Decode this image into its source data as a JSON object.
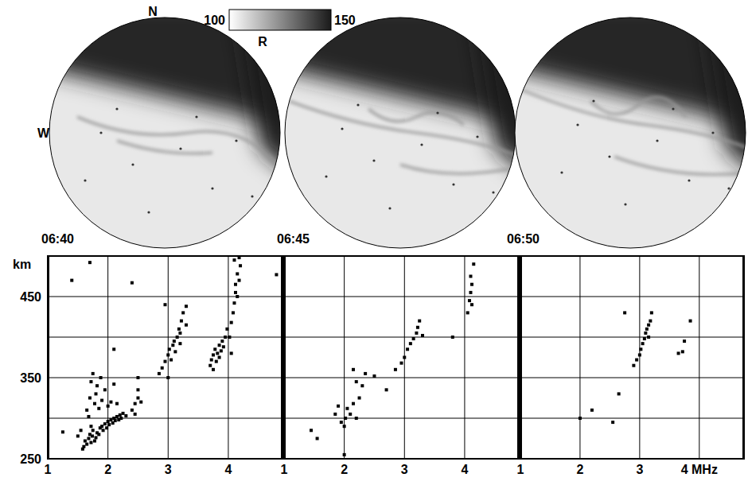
{
  "sky_images": {
    "colorbar": {
      "range": [
        100,
        150
      ],
      "label": "R"
    },
    "north": "N",
    "west": "W",
    "times": [
      "06:40",
      "06:45",
      "06:50"
    ]
  },
  "chart_data": [
    {
      "type": "scatter",
      "y_label": "km",
      "xlim": [
        1,
        4.9
      ],
      "ylim": [
        250,
        500
      ],
      "xticks": [
        1,
        2,
        3,
        4
      ],
      "yticks": [
        250,
        {
          "value": 300,
          "label": null
        },
        350,
        {
          "value": 400,
          "label": null
        },
        450,
        {
          "value": 500,
          "label": null
        }
      ],
      "grid": true,
      "color": "#000000",
      "marker": "square",
      "x": [
        1.4,
        1.25,
        1.7,
        2.4,
        2.1,
        2.95,
        4.8,
        2.5,
        1.6,
        1.62,
        1.65,
        1.68,
        1.7,
        1.72,
        1.74,
        1.75,
        1.78,
        1.8,
        1.82,
        1.85,
        1.87,
        1.9,
        1.92,
        1.95,
        1.98,
        2.0,
        2.02,
        2.05,
        2.08,
        2.1,
        2.12,
        2.15,
        2.18,
        2.2,
        2.22,
        2.25,
        2.3,
        1.5,
        1.55,
        1.58,
        1.72,
        1.65,
        1.7,
        1.72,
        1.75,
        1.78,
        1.8,
        1.82,
        1.85,
        1.9,
        1.95,
        2.0,
        2.05,
        2.1,
        2.15,
        1.68,
        1.88,
        2.4,
        2.45,
        2.5,
        2.55,
        2.5,
        2.45,
        2.85,
        2.9,
        2.95,
        3.0,
        3.02,
        3.05,
        3.08,
        3.1,
        3.12,
        3.15,
        3.18,
        3.2,
        3.22,
        3.25,
        3.3,
        3.3,
        3.2,
        3.0,
        3.7,
        3.72,
        3.75,
        3.78,
        3.8,
        3.82,
        3.85,
        3.88,
        3.9,
        3.92,
        3.95,
        3.98,
        3.75,
        3.85,
        4.02,
        4.05,
        4.08,
        4.1,
        4.12,
        4.12,
        4.15,
        4.15,
        4.18,
        4.2,
        4.1,
        4.18,
        4.05
      ],
      "values": [
        470,
        283,
        492,
        467,
        385,
        440,
        477,
        350,
        265,
        272,
        268,
        275,
        280,
        270,
        278,
        285,
        272,
        276,
        282,
        280,
        288,
        290,
        285,
        293,
        288,
        296,
        292,
        298,
        294,
        300,
        297,
        302,
        298,
        304,
        300,
        306,
        303,
        278,
        285,
        262,
        290,
        310,
        325,
        345,
        355,
        318,
        330,
        340,
        312,
        322,
        335,
        315,
        320,
        342,
        318,
        302,
        350,
        310,
        318,
        325,
        320,
        335,
        305,
        355,
        362,
        370,
        378,
        385,
        372,
        390,
        395,
        382,
        400,
        410,
        405,
        420,
        430,
        438,
        415,
        392,
        350,
        365,
        372,
        378,
        385,
        370,
        380,
        390,
        383,
        395,
        388,
        400,
        410,
        360,
        375,
        400,
        418,
        430,
        442,
        455,
        465,
        450,
        478,
        470,
        488,
        495,
        498,
        380
      ]
    },
    {
      "type": "scatter",
      "xlim": [
        1,
        4.9
      ],
      "ylim": [
        250,
        500
      ],
      "xticks": [
        1,
        2,
        3,
        4
      ],
      "yticks": [
        250,
        {
          "value": 300,
          "label": null
        },
        350,
        {
          "value": 400,
          "label": null
        },
        450,
        {
          "value": 500,
          "label": null
        }
      ],
      "grid": true,
      "tick_labels": "x",
      "color": "#000000",
      "marker": "square",
      "x": [
        1.45,
        1.55,
        1.85,
        1.9,
        1.95,
        2.0,
        2.02,
        2.05,
        2.1,
        2.15,
        2.2,
        2.25,
        2.2,
        2.15,
        2.3,
        2.35,
        2.5,
        2.7,
        2.85,
        2.95,
        3.0,
        3.05,
        3.1,
        3.15,
        3.2,
        3.22,
        3.25,
        3.3,
        3.8,
        4.05,
        4.08,
        4.1,
        4.12,
        4.1,
        4.15,
        4.12,
        2.0
      ],
      "values": [
        285,
        275,
        305,
        315,
        295,
        290,
        300,
        312,
        305,
        318,
        300,
        325,
        345,
        360,
        340,
        355,
        352,
        335,
        360,
        368,
        375,
        385,
        392,
        398,
        405,
        412,
        420,
        402,
        400,
        430,
        445,
        455,
        465,
        475,
        490,
        440,
        255
      ]
    },
    {
      "type": "scatter",
      "xlim": [
        1,
        4.75
      ],
      "ylim": [
        250,
        500
      ],
      "xticks": [
        1,
        2,
        3,
        {
          "value": 4,
          "label": "4 MHz"
        }
      ],
      "yticks": [
        250,
        {
          "value": 300,
          "label": null
        },
        350,
        {
          "value": 400,
          "label": null
        },
        450,
        {
          "value": 500,
          "label": null
        }
      ],
      "grid": true,
      "tick_labels": "x",
      "color": "#000000",
      "marker": "square",
      "x": [
        2.0,
        2.2,
        2.55,
        2.65,
        2.75,
        2.9,
        2.95,
        3.0,
        3.02,
        3.05,
        3.08,
        3.1,
        3.12,
        3.15,
        3.18,
        3.2,
        3.15,
        3.65,
        3.72,
        3.75,
        3.85
      ],
      "values": [
        300,
        310,
        295,
        330,
        430,
        365,
        372,
        378,
        385,
        392,
        398,
        405,
        410,
        415,
        420,
        430,
        400,
        380,
        382,
        395,
        420
      ]
    }
  ]
}
